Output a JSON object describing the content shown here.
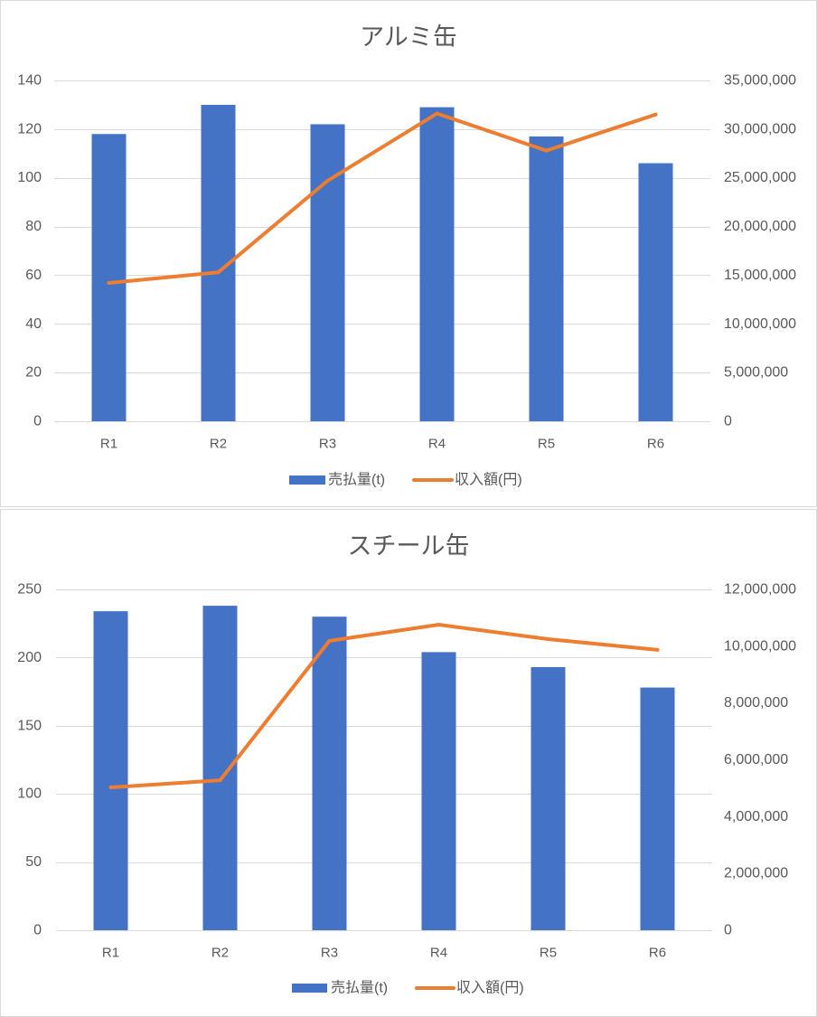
{
  "colors": {
    "text": "#595959",
    "grid": "#D9D9D9",
    "border": "#D9D9D9"
  },
  "chart_data": [
    {
      "type": "bar",
      "title": "アルミ缶",
      "categories": [
        "R1",
        "R2",
        "R3",
        "R4",
        "R5",
        "R6"
      ],
      "series": [
        {
          "name": "売払量(t)",
          "type": "bar",
          "axis": "left",
          "color": "#4472C4",
          "values": [
            118,
            130,
            122,
            129,
            117,
            106
          ]
        },
        {
          "name": "収入額(円)",
          "type": "line",
          "axis": "right",
          "color": "#ED7D31",
          "values": [
            14200000,
            15300000,
            24700000,
            31600000,
            27800000,
            31500000
          ]
        }
      ],
      "y_axis": {
        "min": 0,
        "max": 140,
        "ticks": [
          0,
          20,
          40,
          60,
          80,
          100,
          120,
          140
        ]
      },
      "y2_axis": {
        "min": 0,
        "max": 35000000,
        "ticks": [
          0,
          5000000,
          10000000,
          15000000,
          20000000,
          25000000,
          30000000,
          35000000
        ],
        "tick_labels": [
          "0",
          "5,000,000",
          "10,000,000",
          "15,000,000",
          "20,000,000",
          "25,000,000",
          "30,000,000",
          "35,000,000"
        ]
      },
      "grid": true,
      "legend": "bottom"
    },
    {
      "type": "bar",
      "title": "スチール缶",
      "categories": [
        "R1",
        "R2",
        "R3",
        "R4",
        "R5",
        "R6"
      ],
      "series": [
        {
          "name": "売払量(t)",
          "type": "bar",
          "axis": "left",
          "color": "#4472C4",
          "values": [
            234,
            238,
            230,
            204,
            193,
            178
          ]
        },
        {
          "name": "収入額(円)",
          "type": "line",
          "axis": "right",
          "color": "#ED7D31",
          "values": [
            5030000,
            5280000,
            10190000,
            10760000,
            10250000,
            9870000
          ]
        }
      ],
      "y_axis": {
        "min": 0,
        "max": 250,
        "ticks": [
          0,
          50,
          100,
          150,
          200,
          250
        ]
      },
      "y2_axis": {
        "min": 0,
        "max": 12000000,
        "ticks": [
          0,
          2000000,
          4000000,
          6000000,
          8000000,
          10000000,
          12000000
        ],
        "tick_labels": [
          "0",
          "2,000,000",
          "4,000,000",
          "6,000,000",
          "8,000,000",
          "10,000,000",
          "12,000,000"
        ]
      },
      "grid": true,
      "legend": "bottom"
    }
  ]
}
